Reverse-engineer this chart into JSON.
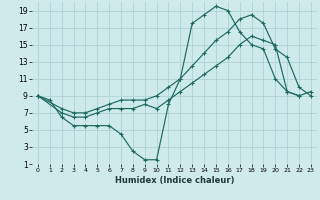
{
  "xlabel": "Humidex (Indice chaleur)",
  "background_color": "#ceeaea",
  "grid_color": "#aed4d4",
  "line_color": "#1e6b5e",
  "xlim": [
    -0.5,
    23.5
  ],
  "ylim": [
    1,
    20
  ],
  "xtick_labels": [
    "0",
    "1",
    "2",
    "3",
    "4",
    "5",
    "6",
    "7",
    "8",
    "9",
    "10",
    "11",
    "12",
    "13",
    "14",
    "15",
    "16",
    "17",
    "18",
    "19",
    "20",
    "21",
    "22",
    "23"
  ],
  "xtick_vals": [
    0,
    1,
    2,
    3,
    4,
    5,
    6,
    7,
    8,
    9,
    10,
    11,
    12,
    13,
    14,
    15,
    16,
    17,
    18,
    19,
    20,
    21,
    22,
    23
  ],
  "ytick_vals": [
    1,
    3,
    5,
    7,
    9,
    11,
    13,
    15,
    17,
    19
  ],
  "series1_x": [
    0,
    1,
    2,
    3,
    4,
    5,
    6,
    7,
    8,
    9,
    10,
    11,
    12,
    13,
    14,
    15,
    16,
    17,
    18,
    19,
    20,
    21,
    22
  ],
  "series1_y": [
    9,
    8.5,
    6.5,
    5.5,
    5.5,
    5.5,
    5.5,
    4.5,
    2.5,
    1.5,
    1.5,
    8.0,
    11.0,
    17.5,
    18.5,
    19.5,
    19.0,
    16.5,
    15.0,
    14.5,
    11.0,
    9.5,
    9.0
  ],
  "series2_x": [
    0,
    2,
    3,
    4,
    5,
    6,
    7,
    8,
    9,
    10,
    11,
    12,
    13,
    14,
    15,
    16,
    17,
    18,
    19,
    20,
    21,
    22,
    23
  ],
  "series2_y": [
    9,
    7.0,
    6.5,
    6.5,
    7.0,
    7.5,
    7.5,
    7.5,
    8.0,
    7.5,
    8.5,
    9.5,
    10.5,
    11.5,
    12.5,
    13.5,
    15.0,
    16.0,
    15.5,
    15.0,
    9.5,
    9.0,
    9.5
  ],
  "series3_x": [
    0,
    2,
    3,
    4,
    5,
    6,
    7,
    8,
    9,
    10,
    11,
    12,
    13,
    14,
    15,
    16,
    17,
    18,
    19,
    20,
    21,
    22,
    23
  ],
  "series3_y": [
    9,
    7.5,
    7.0,
    7.0,
    7.5,
    8.0,
    8.5,
    8.5,
    8.5,
    9.0,
    10.0,
    11.0,
    12.5,
    14.0,
    15.5,
    16.5,
    18.0,
    18.5,
    17.5,
    14.5,
    13.5,
    10.0,
    9.0
  ]
}
